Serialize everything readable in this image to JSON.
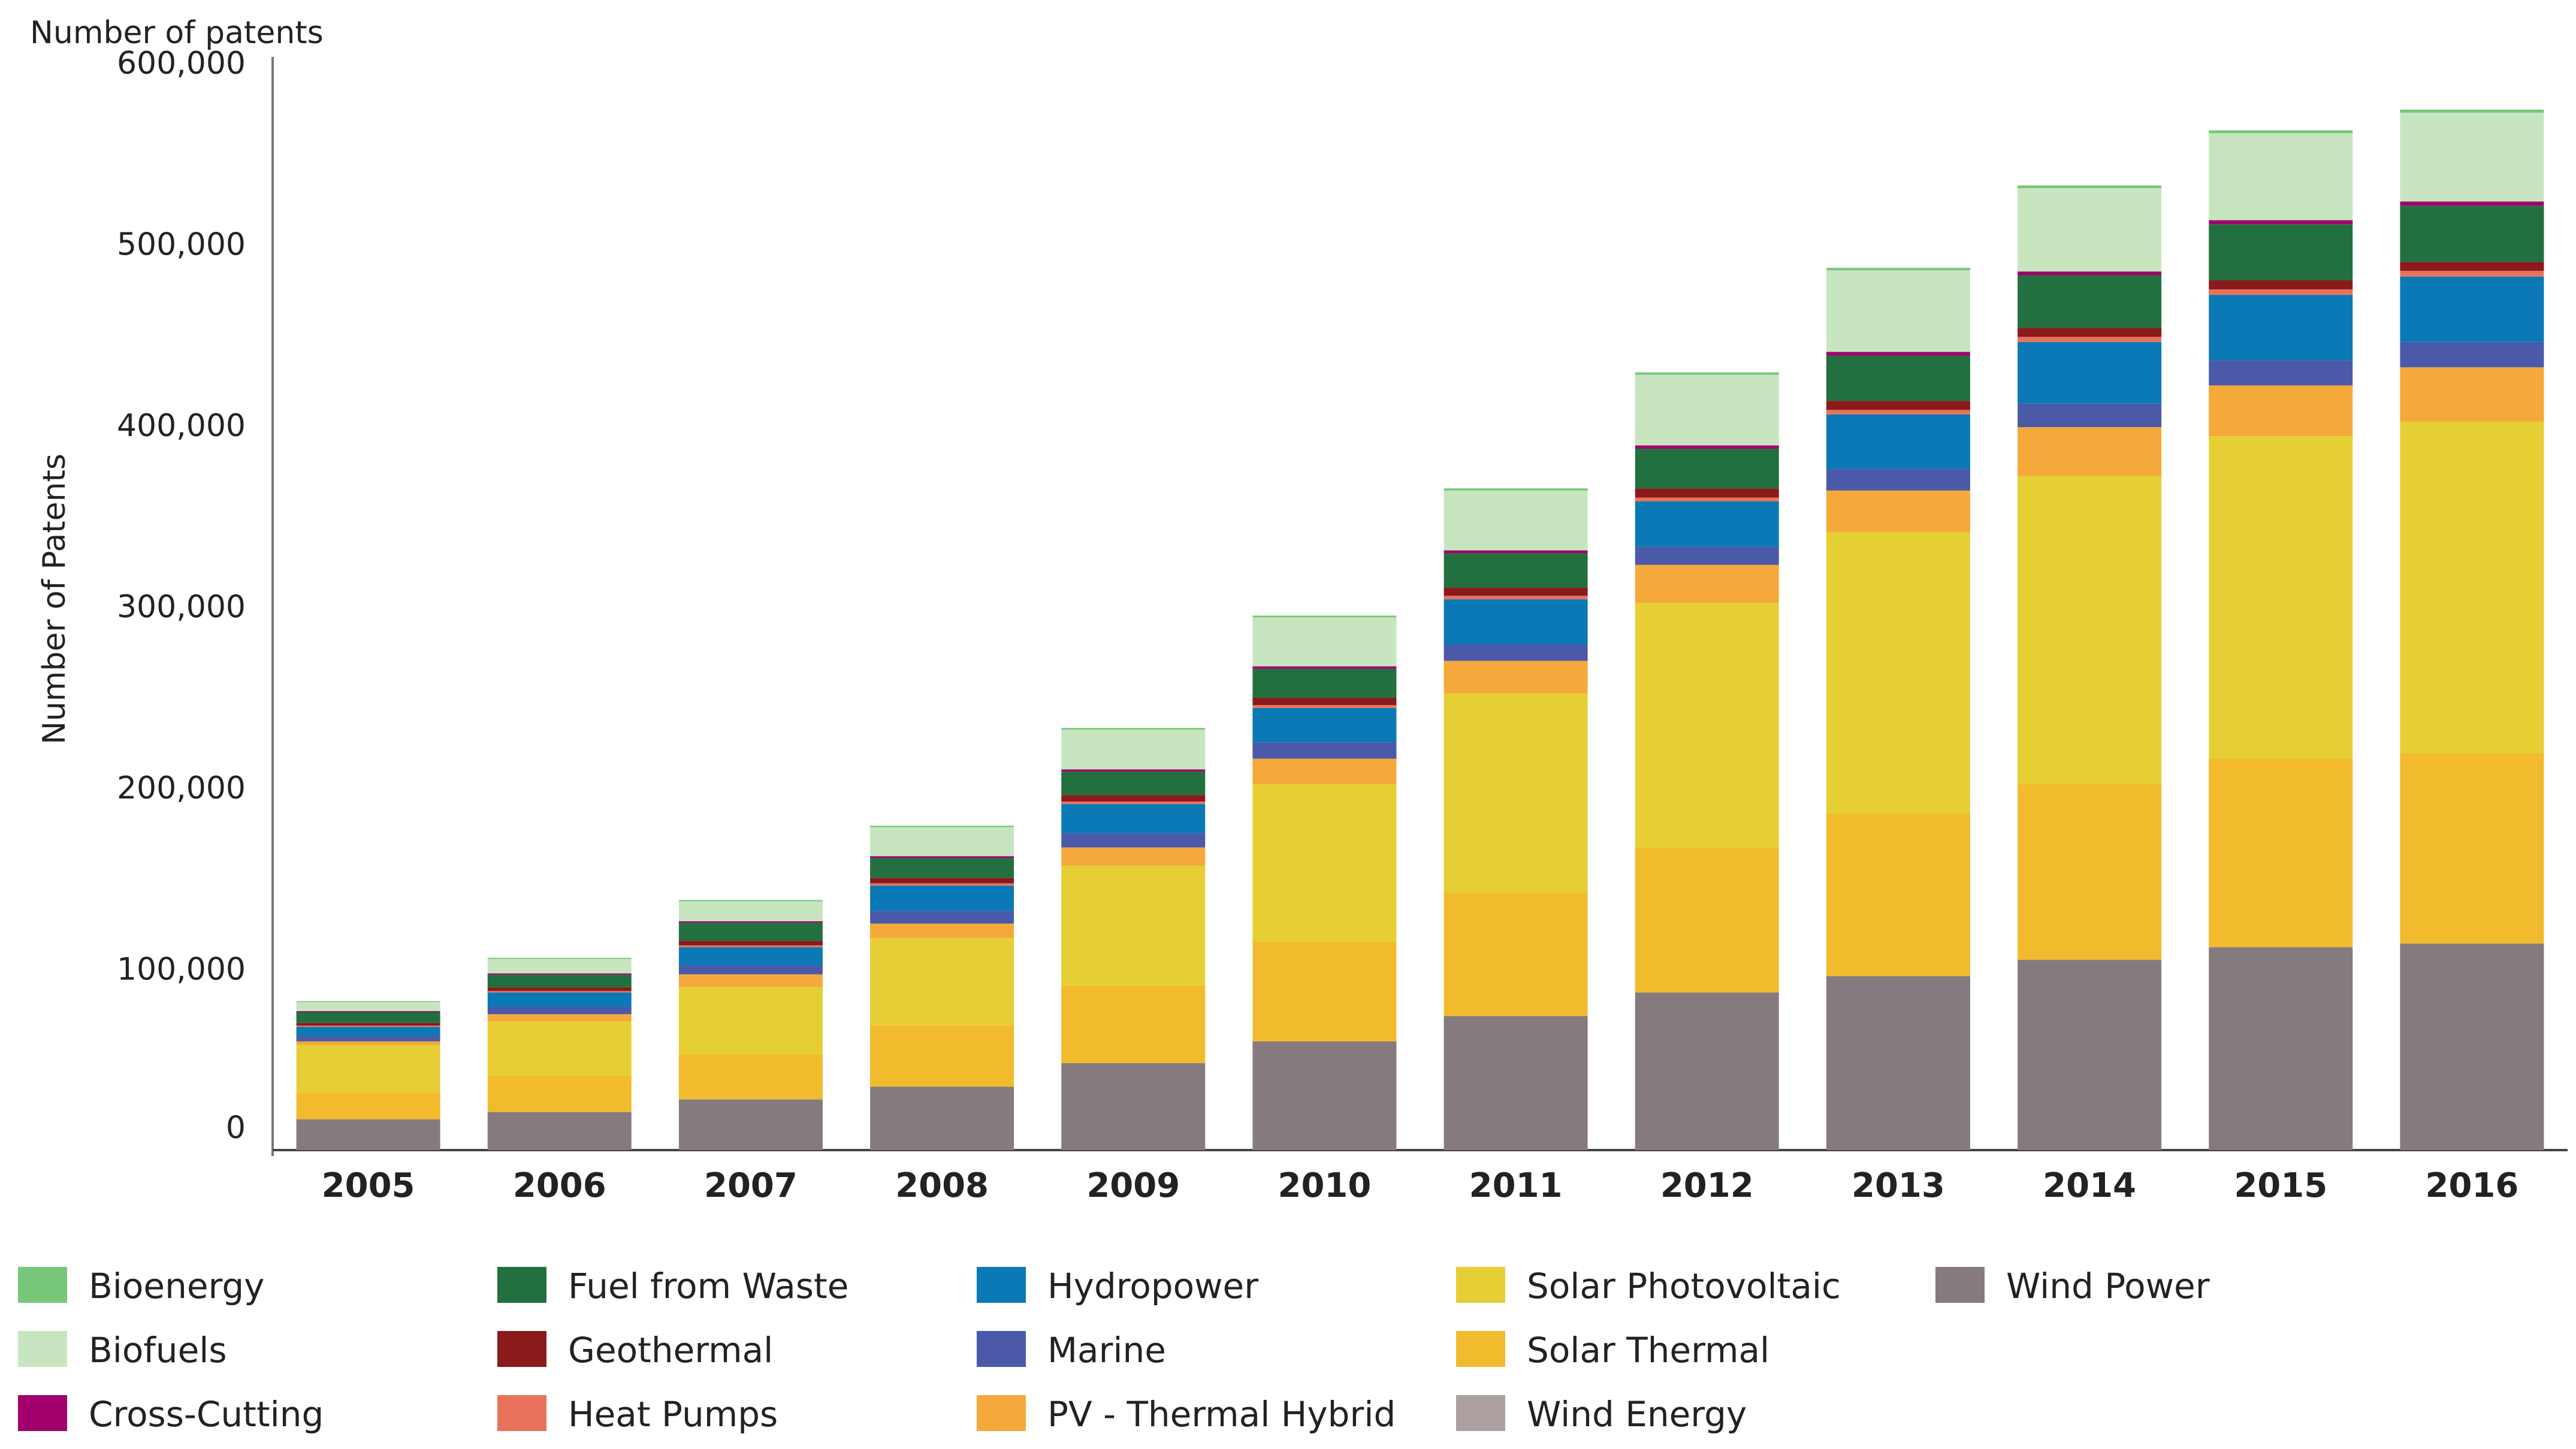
{
  "chart_data": {
    "type": "bar",
    "stacked": true,
    "title": "Number of patents",
    "xlabel": "",
    "ylabel": "Number of Patents",
    "ylim": [
      0,
      600000
    ],
    "yticks": [
      0,
      100000,
      200000,
      300000,
      400000,
      500000,
      600000
    ],
    "ytick_labels": [
      "0",
      "100,000",
      "200,000",
      "300,000",
      "400,000",
      "500,000",
      "600,000"
    ],
    "grid": false,
    "legend_position": "bottom",
    "categories": [
      "2005",
      "2006",
      "2007",
      "2008",
      "2009",
      "2010",
      "2011",
      "2012",
      "2013",
      "2014",
      "2015",
      "2016"
    ],
    "stack_order": [
      "Wind Power",
      "Solar Thermal",
      "Solar Photovoltaic",
      "PV - Thermal Hybrid",
      "Marine",
      "Hydropower",
      "Heat Pumps",
      "Geothermal",
      "Fuel from Waste",
      "Cross-Cutting",
      "Biofuels",
      "Bioenergy",
      "Wind Energy"
    ],
    "series": [
      {
        "name": "Bioenergy",
        "color": "#78c679",
        "values": [
          500,
          600,
          700,
          800,
          900,
          1000,
          1200,
          1300,
          1400,
          1500,
          1600,
          1700
        ]
      },
      {
        "name": "Biofuels",
        "color": "#c7e6c0",
        "values": [
          5000,
          8000,
          11000,
          16000,
          22000,
          27000,
          33000,
          39000,
          45000,
          46000,
          48000,
          49000
        ]
      },
      {
        "name": "Cross-Cutting",
        "color": "#a3006d",
        "values": [
          500,
          700,
          800,
          1000,
          1200,
          1400,
          1600,
          1800,
          2000,
          2100,
          2200,
          2300
        ]
      },
      {
        "name": "Fuel from Waste",
        "color": "#22703f",
        "values": [
          6000,
          7000,
          10000,
          11000,
          13000,
          16000,
          19000,
          22000,
          25000,
          29000,
          31000,
          31000
        ]
      },
      {
        "name": "Geothermal",
        "color": "#8b1a1a",
        "values": [
          1500,
          2000,
          2500,
          3000,
          3500,
          4000,
          4500,
          5000,
          5000,
          5000,
          5000,
          5000
        ]
      },
      {
        "name": "Heat Pumps",
        "color": "#e8735a",
        "values": [
          700,
          800,
          1000,
          1200,
          1400,
          1600,
          1900,
          2100,
          2500,
          2800,
          3000,
          3200
        ]
      },
      {
        "name": "Hydropower",
        "color": "#0a79b5",
        "values": [
          5000,
          8000,
          10000,
          14000,
          16000,
          19000,
          25000,
          25000,
          30000,
          34000,
          36000,
          36000
        ]
      },
      {
        "name": "Marine",
        "color": "#4b5aa8",
        "values": [
          3000,
          4000,
          5000,
          7000,
          8000,
          9000,
          9000,
          10000,
          12000,
          13000,
          14000,
          14000
        ]
      },
      {
        "name": "PV - Thermal Hybrid",
        "color": "#f5a93a",
        "values": [
          2000,
          4000,
          7000,
          8000,
          10000,
          14000,
          18000,
          21000,
          23000,
          27000,
          28000,
          30000
        ]
      },
      {
        "name": "Solar Photovoltaic",
        "color": "#e5cf34",
        "values": [
          26000,
          30000,
          37000,
          48000,
          66000,
          87000,
          110000,
          135000,
          155000,
          170000,
          178000,
          183000
        ]
      },
      {
        "name": "Solar Thermal",
        "color": "#f2bb2d",
        "values": [
          15000,
          20000,
          25000,
          34000,
          43000,
          55000,
          68000,
          80000,
          90000,
          97000,
          104000,
          105000
        ]
      },
      {
        "name": "Wind Energy",
        "color": "#aca0a0",
        "values": [
          0,
          0,
          0,
          0,
          0,
          0,
          0,
          0,
          0,
          0,
          0,
          0
        ]
      },
      {
        "name": "Wind Power",
        "color": "#857a7e",
        "values": [
          17000,
          21000,
          28000,
          35000,
          48000,
          60000,
          74000,
          87000,
          96000,
          105000,
          112000,
          114000
        ]
      }
    ]
  }
}
